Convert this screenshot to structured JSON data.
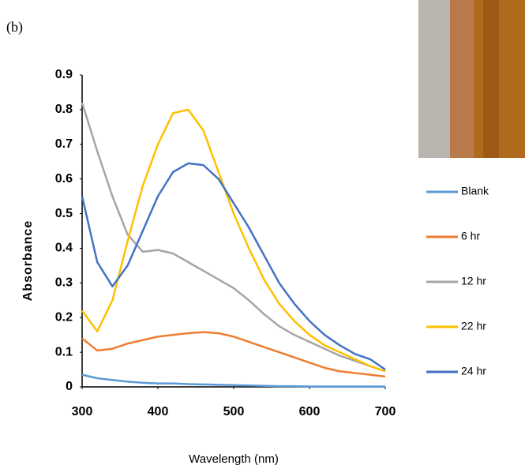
{
  "chart_data": {
    "type": "line",
    "panel_label": "(b)",
    "xlabel": "Wavelength (nm)",
    "ylabel": "Absorbance",
    "x": [
      300,
      320,
      340,
      360,
      380,
      400,
      420,
      440,
      460,
      480,
      500,
      520,
      540,
      560,
      580,
      600,
      620,
      640,
      660,
      680,
      700
    ],
    "series": [
      {
        "name": "Blank",
        "color": "#5b9bd5",
        "values": [
          0.035,
          0.025,
          0.02,
          0.015,
          0.012,
          0.01,
          0.01,
          0.008,
          0.007,
          0.006,
          0.005,
          0.004,
          0.003,
          0.002,
          0.002,
          0.001,
          0.001,
          0.001,
          0.001,
          0.001,
          0.001
        ]
      },
      {
        "name": "6 hr",
        "color": "#ed7d31",
        "values": [
          0.14,
          0.105,
          0.11,
          0.125,
          0.135,
          0.145,
          0.15,
          0.155,
          0.158,
          0.155,
          0.145,
          0.13,
          0.115,
          0.1,
          0.085,
          0.07,
          0.055,
          0.045,
          0.04,
          0.035,
          0.03
        ]
      },
      {
        "name": "12 hr",
        "color": "#a5a5a5",
        "values": [
          0.82,
          0.68,
          0.55,
          0.44,
          0.39,
          0.395,
          0.385,
          0.36,
          0.335,
          0.31,
          0.285,
          0.25,
          0.21,
          0.175,
          0.15,
          0.13,
          0.11,
          0.09,
          0.075,
          0.06,
          0.045
        ]
      },
      {
        "name": "22 hr",
        "color": "#ffc000",
        "values": [
          0.22,
          0.16,
          0.25,
          0.42,
          0.58,
          0.7,
          0.79,
          0.8,
          0.74,
          0.62,
          0.5,
          0.4,
          0.31,
          0.24,
          0.19,
          0.15,
          0.12,
          0.1,
          0.08,
          0.06,
          0.045
        ]
      },
      {
        "name": "24 hr",
        "color": "#4472c4",
        "values": [
          0.55,
          0.36,
          0.29,
          0.35,
          0.45,
          0.55,
          0.62,
          0.645,
          0.64,
          0.6,
          0.53,
          0.46,
          0.38,
          0.3,
          0.24,
          0.19,
          0.15,
          0.12,
          0.095,
          0.08,
          0.05
        ]
      }
    ],
    "xlim": [
      300,
      700
    ],
    "xticks": [
      300,
      400,
      500,
      600,
      700
    ],
    "ylim": [
      0,
      0.9
    ],
    "yticks": [
      0,
      0.1,
      0.2,
      0.3,
      0.4,
      0.5,
      0.6,
      0.7,
      0.8,
      0.9
    ],
    "grid": false,
    "legend": "right"
  }
}
